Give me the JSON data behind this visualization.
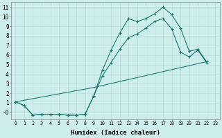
{
  "xlabel": "Humidex (Indice chaleur)",
  "background_color": "#ceeeed",
  "grid_color": "#b8dede",
  "line_color": "#1a7a6e",
  "x_ticks": [
    0,
    1,
    2,
    3,
    4,
    5,
    6,
    7,
    8,
    9,
    10,
    11,
    12,
    13,
    14,
    15,
    16,
    17,
    18,
    19,
    20,
    21,
    22,
    23
  ],
  "y_ticks": [
    0,
    1,
    2,
    3,
    4,
    5,
    6,
    7,
    8,
    9,
    10,
    11
  ],
  "ylim": [
    -0.7,
    11.5
  ],
  "xlim": [
    -0.5,
    23.5
  ],
  "line1_x": [
    0,
    1,
    2,
    3,
    4,
    5,
    6,
    7,
    8,
    9,
    10,
    11,
    12,
    13,
    14,
    15,
    16,
    17,
    18,
    19,
    20,
    21,
    22
  ],
  "line1_y": [
    1.1,
    0.7,
    -0.3,
    -0.2,
    -0.2,
    -0.2,
    -0.3,
    -0.3,
    -0.2,
    1.7,
    4.4,
    6.5,
    8.3,
    9.8,
    9.5,
    9.8,
    10.3,
    11.0,
    10.2,
    8.8,
    6.4,
    6.6,
    5.3
  ],
  "line2_x": [
    0,
    1,
    2,
    3,
    4,
    5,
    6,
    7,
    8,
    9,
    10,
    11,
    12,
    13,
    14,
    15,
    16,
    17,
    18,
    19,
    20,
    21,
    22
  ],
  "line2_y": [
    1.1,
    0.7,
    -0.3,
    -0.2,
    -0.2,
    -0.2,
    -0.3,
    -0.3,
    -0.2,
    1.7,
    3.8,
    5.2,
    6.6,
    7.8,
    8.2,
    8.8,
    9.5,
    9.8,
    8.7,
    6.3,
    5.8,
    6.5,
    5.2
  ],
  "line3_x": [
    0,
    9,
    22
  ],
  "line3_y": [
    1.1,
    2.6,
    5.3
  ]
}
